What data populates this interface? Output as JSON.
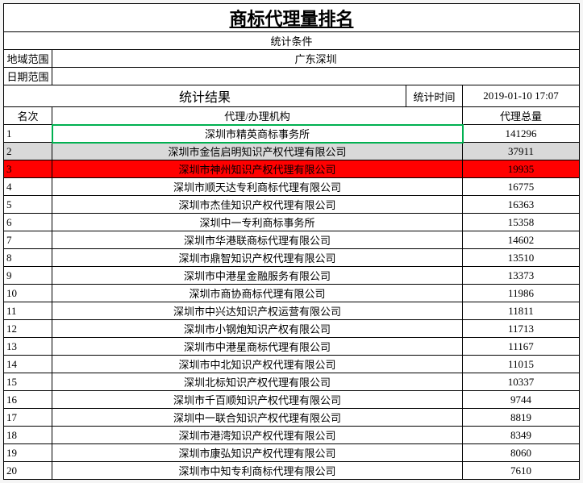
{
  "title": "商标代理量排名",
  "filter_header": "统计条件",
  "filter_region_label": "地域范围",
  "filter_region_value": "广东深圳",
  "filter_date_label": "日期范围",
  "filter_date_value": "",
  "result_header": "统计结果",
  "stat_time_label": "统计时间",
  "stat_time_value": "2019-01-10 17:07",
  "col_rank": "名次",
  "col_agency": "代理/办理机构",
  "col_total": "代理总量",
  "row_styles": {
    "highlight_gray_index": 1,
    "highlight_red_index": 2,
    "green_select_index": 0
  },
  "colors": {
    "cell_border": "#000000",
    "highlight_gray": "#d9d9d9",
    "highlight_red": "#ff0000",
    "selection_green": "#00b050",
    "background": "#ffffff"
  },
  "rows": [
    {
      "rank": "1",
      "agency": "深圳市精英商标事务所",
      "total": "141296"
    },
    {
      "rank": "2",
      "agency": "深圳市金信启明知识产权代理有限公司",
      "total": "37911"
    },
    {
      "rank": "3",
      "agency": "深圳市神州知识产权代理有限公司",
      "total": "19935"
    },
    {
      "rank": "4",
      "agency": "深圳市顺天达专利商标代理有限公司",
      "total": "16775"
    },
    {
      "rank": "5",
      "agency": "深圳市杰佳知识产权代理有限公司",
      "total": "16363"
    },
    {
      "rank": "6",
      "agency": "深圳中一专利商标事务所",
      "total": "15358"
    },
    {
      "rank": "7",
      "agency": "深圳市华港联商标代理有限公司",
      "total": "14602"
    },
    {
      "rank": "8",
      "agency": "深圳市鼎智知识产权代理有限公司",
      "total": "13510"
    },
    {
      "rank": "9",
      "agency": "深圳市中港星金融服务有限公司",
      "total": "13373"
    },
    {
      "rank": "10",
      "agency": "深圳市商协商标代理有限公司",
      "total": "11986"
    },
    {
      "rank": "11",
      "agency": "深圳市中兴达知识产权运营有限公司",
      "total": "11811"
    },
    {
      "rank": "12",
      "agency": "深圳市小钢炮知识产权有限公司",
      "total": "11713"
    },
    {
      "rank": "13",
      "agency": "深圳市中港星商标代理有限公司",
      "total": "11167"
    },
    {
      "rank": "14",
      "agency": "深圳市中北知识产权代理有限公司",
      "total": "11015"
    },
    {
      "rank": "15",
      "agency": "深圳北标知识产权代理有限公司",
      "total": "10337"
    },
    {
      "rank": "16",
      "agency": "深圳市千百顺知识产权代理有限公司",
      "total": "9744"
    },
    {
      "rank": "17",
      "agency": "深圳中一联合知识产权代理有限公司",
      "total": "8819"
    },
    {
      "rank": "18",
      "agency": "深圳市港湾知识产权代理有限公司",
      "total": "8349"
    },
    {
      "rank": "19",
      "agency": "深圳市康弘知识产权代理有限公司",
      "total": "8060"
    },
    {
      "rank": "20",
      "agency": "深圳市中知专利商标代理有限公司",
      "total": "7610"
    }
  ]
}
